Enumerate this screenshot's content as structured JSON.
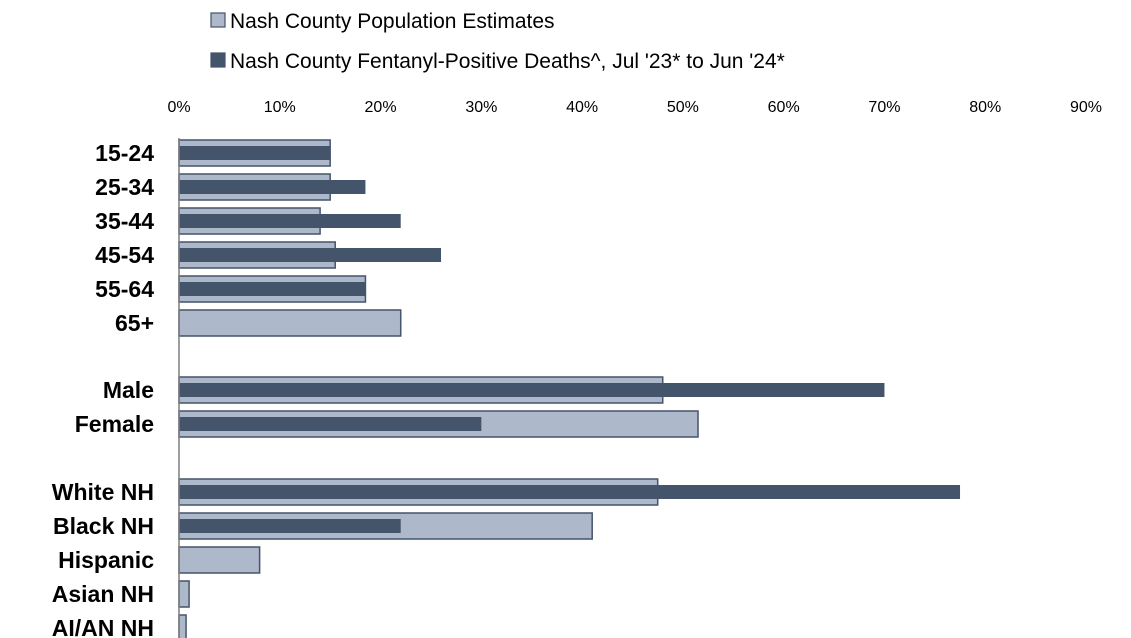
{
  "chart_data": {
    "type": "bar",
    "orientation": "horizontal",
    "categories": [
      "15-24",
      "25-34",
      "35-44",
      "45-54",
      "55-64",
      "65+",
      "Male",
      "Female",
      "White NH",
      "Black NH",
      "Hispanic",
      "Asian NH",
      "AI/AN NH"
    ],
    "series": [
      {
        "name": "Nash County Population Estimates",
        "color": "#adb9ca",
        "values": [
          15,
          15,
          14,
          15.5,
          18.5,
          22,
          48,
          51.5,
          47.5,
          41,
          8,
          1,
          0.7
        ]
      },
      {
        "name": "Nash County Fentanyl-Positive Deaths^, Jul '23* to Jun '24*",
        "color": "#44546a",
        "values": [
          15,
          18.5,
          22,
          26,
          18.5,
          0,
          70,
          30,
          77.5,
          22,
          0,
          0,
          0
        ]
      }
    ],
    "x_ticks": [
      "0%",
      "10%",
      "20%",
      "30%",
      "40%",
      "50%",
      "60%",
      "70%",
      "80%",
      "90%"
    ],
    "xlim": [
      0,
      90
    ],
    "legend_position": "top",
    "grid": false
  }
}
